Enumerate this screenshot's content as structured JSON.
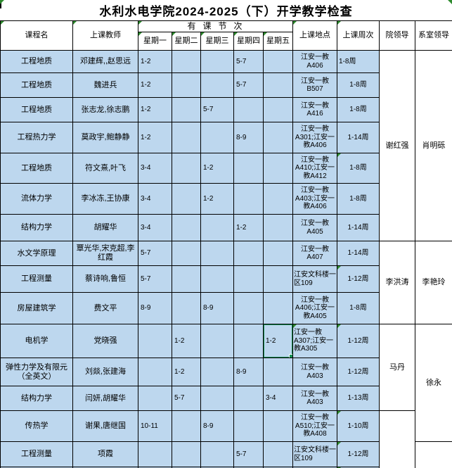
{
  "title": "水利水电学院2024-2025（下）开学教学检查",
  "colors": {
    "cell_bg": "#BDD7EE",
    "selection_green": "#159154",
    "error_marker_green": "#2E8B2E",
    "border": "#000000",
    "leader_bg": "#FFFFFF"
  },
  "header": {
    "course": "课程名",
    "teacher": "上课教师",
    "periods_group": "有课节次",
    "days": [
      "星期一",
      "星期二",
      "星期三",
      "星期四",
      "星期五"
    ],
    "location": "上课地点",
    "weeks": "上课周次",
    "college_leader": "院领导",
    "dept_leader": "系室领导"
  },
  "rows": [
    {
      "course": "工程地质",
      "teacher": "邓建辉,,赵思远",
      "mon": "1-2",
      "tue": "",
      "wed": "",
      "thu": "5-7",
      "fri": "",
      "location": "江安一教A406",
      "weeks": "1-8周",
      "week_align": "left"
    },
    {
      "course": "工程地质",
      "teacher": "魏进兵",
      "mon": "1-2",
      "tue": "",
      "wed": "",
      "thu": "5-7",
      "fri": "",
      "location": "江安一教B507",
      "weeks": "1-8周"
    },
    {
      "course": "工程地质",
      "teacher": "张志龙,徐志鹏",
      "mon": "1-2",
      "tue": "",
      "wed": "5-7",
      "thu": "",
      "fri": "",
      "location": "江安一教A416",
      "weeks": "1-8周"
    },
    {
      "course": "工程热力学",
      "teacher": "莫政宇,鲍静静",
      "mon": "1-2",
      "tue": "",
      "wed": "",
      "thu": "8-9",
      "fri": "",
      "location": "江安一教A301;江安一教A406",
      "weeks": "1-14周"
    },
    {
      "course": "工程地质",
      "teacher": "符文熹,叶飞",
      "mon": "3-4",
      "tue": "",
      "wed": "1-2",
      "thu": "",
      "fri": "",
      "location": "江安一教A410;江安一教A412",
      "weeks": "1-8周"
    },
    {
      "course": "流体力学",
      "teacher": "李冰冻,王协康",
      "mon": "3-4",
      "tue": "",
      "wed": "1-2",
      "thu": "",
      "fri": "",
      "location": "江安一教A403;江安一教A406",
      "weeks": "1-8周"
    },
    {
      "course": "结构力学",
      "teacher": "胡耀华",
      "mon": "3-4",
      "tue": "",
      "wed": "",
      "thu": "1-2",
      "fri": "",
      "location": "江安一教A405",
      "weeks": "1-14周"
    },
    {
      "course": "水文学原理",
      "teacher": "覃光华,宋克超,李红霞",
      "mon": "5-7",
      "tue": "",
      "wed": "",
      "thu": "",
      "fri": "",
      "location": "江安一教A407",
      "weeks": "1-14周"
    },
    {
      "course": "工程测量",
      "teacher": "蔡诗响,鲁恒",
      "mon": "5-7",
      "tue": "",
      "wed": "",
      "thu": "",
      "fri": "",
      "location": "江安文科楼一区109",
      "weeks": "1-12周",
      "loc_align": "left"
    },
    {
      "course": "房屋建筑学",
      "teacher": "费文平",
      "mon": "8-9",
      "tue": "",
      "wed": "8-9",
      "thu": "",
      "fri": "",
      "location": "江安一教A406;江安一教A405",
      "weeks": "1-8周"
    },
    {
      "course": "电机学",
      "teacher": "党晓强",
      "mon": "",
      "tue": "1-2",
      "wed": "",
      "thu": "",
      "fri": "1-2",
      "location": "江安一教A307;江安一教A305",
      "weeks": "1-12周",
      "loc_align": "left"
    },
    {
      "course": "弹性力学及有限元（全英文）",
      "teacher": "刘燚,张建海",
      "mon": "",
      "tue": "1-2",
      "wed": "",
      "thu": "8-9",
      "fri": "",
      "location": "江安一教A403",
      "weeks": "1-12周"
    },
    {
      "course": "结构力学",
      "teacher": "闫妍,胡耀华",
      "mon": "",
      "tue": "5-7",
      "wed": "",
      "thu": "",
      "fri": "3-4",
      "location": "江安一教A403",
      "weeks": "1-13周"
    },
    {
      "course": "传热学",
      "teacher": "谢果,唐继国",
      "mon": "10-11",
      "tue": "",
      "wed": "8-9",
      "thu": "",
      "fri": "",
      "location": "江安一教A510;江安一教A408",
      "weeks": "1-10周"
    },
    {
      "course": "工程测量",
      "teacher": "项霞",
      "mon": "",
      "tue": "",
      "wed": "",
      "thu": "5-7",
      "fri": "",
      "location": "江安文科楼一区109",
      "weeks": "1-12周",
      "loc_align": "left"
    },
    {
      "course": "",
      "teacher": "",
      "mon": "",
      "tue": "",
      "wed": "",
      "thu": "",
      "fri": "",
      "location": "",
      "weeks": ""
    }
  ],
  "leaders": {
    "college": [
      {
        "name": "谢红强",
        "from": 0,
        "span": 7
      },
      {
        "name": "李洪涛",
        "from": 7,
        "span": 3
      },
      {
        "name": "马丹",
        "from": 10,
        "span": 3
      },
      {
        "name": "",
        "from": 13,
        "span": 3
      }
    ],
    "dept": [
      {
        "name": "肖明砾",
        "from": 0,
        "span": 7
      },
      {
        "name": "李艳玲",
        "from": 7,
        "span": 3
      },
      {
        "name": "徐永",
        "from": 10,
        "span": 4
      },
      {
        "name": "",
        "from": 14,
        "span": 2
      }
    ]
  },
  "selection": {
    "row": 10,
    "col": "fri",
    "value": "1-2"
  },
  "error_markers": {
    "header_cells": [
      "course",
      "teacher",
      "periods_group",
      "day0",
      "day1",
      "day2",
      "day3",
      "day4",
      "location",
      "weeks"
    ],
    "body_cells": [
      {
        "row": 4,
        "col": "weeks"
      },
      {
        "row": 8,
        "col": "weeks"
      },
      {
        "row": 10,
        "col": "location"
      },
      {
        "row": 10,
        "col": "weeks"
      },
      {
        "row": 13,
        "col": "weeks"
      },
      {
        "row": 14,
        "col": "weeks"
      },
      {
        "row": 15,
        "col": "weeks"
      }
    ]
  }
}
